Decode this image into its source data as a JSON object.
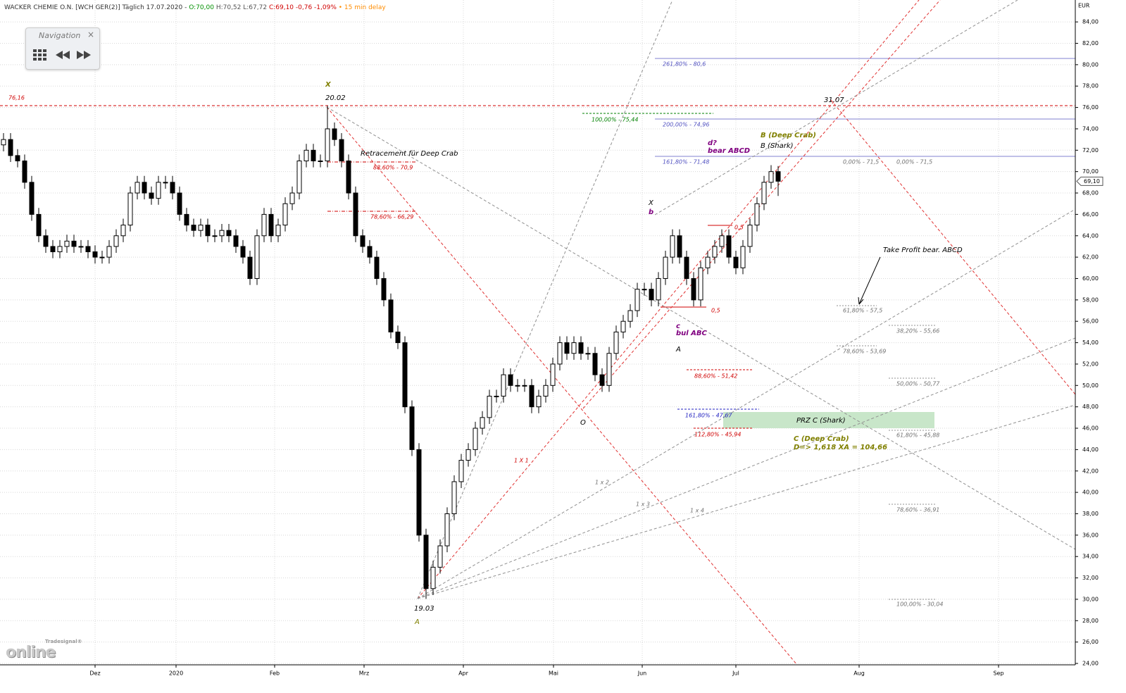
{
  "header": {
    "instrument": "WACKER CHEMIE O.N. [WCH GER(2)] Täglich 17.07.2020 -",
    "open": "O:70,00",
    "high": "H:70,52",
    "low": "L:67,72",
    "close": "C:69,10 -0,76 -1,09%",
    "delay": "• 15 min delay"
  },
  "navigation": {
    "title": "Navigation",
    "close": "×"
  },
  "logo": {
    "brand": "Tradesignal®",
    "name": "online"
  },
  "chart_data": {
    "type": "candlestick",
    "x": [
      0,
      1,
      2,
      3,
      4,
      5,
      6,
      7,
      8,
      9,
      10,
      11,
      12,
      13,
      14,
      15,
      16,
      17,
      18,
      19,
      20,
      21,
      22,
      23,
      24,
      25,
      26,
      27,
      28,
      29,
      30,
      31,
      32,
      33,
      34,
      35,
      36,
      37,
      38,
      39,
      40,
      41,
      42,
      43,
      44,
      45,
      46,
      47,
      48,
      49,
      50,
      51,
      52,
      53,
      54,
      55,
      56,
      57,
      58,
      59,
      60,
      61,
      62,
      63,
      64,
      65,
      66,
      67,
      68,
      69,
      70,
      71,
      72,
      73,
      74,
      75,
      76,
      77,
      78,
      79,
      80,
      81,
      82,
      83,
      84,
      85,
      86,
      87,
      88,
      89,
      90,
      91,
      92,
      93,
      94,
      95,
      96,
      97,
      98,
      99,
      100,
      101,
      102,
      103,
      104,
      105,
      106,
      107,
      108,
      109,
      110
    ],
    "open": [
      72.5,
      73,
      71.5,
      71,
      69,
      66,
      64,
      63,
      62.5,
      63,
      63.5,
      63,
      63,
      62.5,
      62,
      62,
      63,
      64,
      65,
      68,
      69,
      68,
      67.5,
      69,
      69,
      68,
      66,
      65,
      64.5,
      65,
      64,
      64,
      64.5,
      64,
      63,
      62,
      60,
      64,
      66,
      64,
      65,
      67,
      68,
      71,
      72,
      71,
      71,
      74,
      73,
      71,
      68,
      64,
      63,
      62,
      60,
      58,
      55,
      54,
      48,
      44,
      36,
      31,
      33,
      35,
      38,
      41,
      43,
      44,
      46,
      47,
      49,
      49,
      51,
      50,
      50,
      50,
      48,
      49,
      50,
      52,
      54,
      53,
      54,
      53,
      53,
      51,
      50,
      53,
      55,
      56,
      57,
      59,
      59,
      58,
      60,
      62,
      64,
      62,
      60,
      58,
      61,
      62,
      63,
      64,
      62,
      61,
      63,
      65,
      67,
      69,
      70
    ],
    "high": [
      73.6,
      73.6,
      72.1,
      71.6,
      69.6,
      66.6,
      64.6,
      63.6,
      63.6,
      64.1,
      64.1,
      63.6,
      63.6,
      63.1,
      62.6,
      63.6,
      64.6,
      65.6,
      68.6,
      69.6,
      69.6,
      68.6,
      69.6,
      69.6,
      69.6,
      68.6,
      66.6,
      65.6,
      65.6,
      65.6,
      64.6,
      65.1,
      65.1,
      64.6,
      63.6,
      62.6,
      64.6,
      66.6,
      66.6,
      65.6,
      67.6,
      68.6,
      71.6,
      72.6,
      72.6,
      71.6,
      76.16,
      74.6,
      73.6,
      71.6,
      68.6,
      64.6,
      63.6,
      62.6,
      60.6,
      58.6,
      55.6,
      54.6,
      48.6,
      44.6,
      36.6,
      33.6,
      35.6,
      38.6,
      41.6,
      43.6,
      44.6,
      46.6,
      47.6,
      49.6,
      49.6,
      51.6,
      51.6,
      50.6,
      50.6,
      50.6,
      49.6,
      50.6,
      52.6,
      54.6,
      54.6,
      54.6,
      54.6,
      53.6,
      53.6,
      51.6,
      53.6,
      55.6,
      56.6,
      57.6,
      59.6,
      59.6,
      59.6,
      60.6,
      62.6,
      64.6,
      64.6,
      62.6,
      60.6,
      61.6,
      62.6,
      63.6,
      64.6,
      64.6,
      62.6,
      63.6,
      65.6,
      67.6,
      69.6,
      70.6,
      70.52
    ],
    "low": [
      71.9,
      70.9,
      70.4,
      68.4,
      65.4,
      63.4,
      62.4,
      61.9,
      61.9,
      62.4,
      62.4,
      62.4,
      61.9,
      61.4,
      61.4,
      61.4,
      62.4,
      63.4,
      64.4,
      67.4,
      67.4,
      66.9,
      66.9,
      68.4,
      67.4,
      65.4,
      64.4,
      63.9,
      63.9,
      63.4,
      63.4,
      63.4,
      63.4,
      62.4,
      61.4,
      59.4,
      59.4,
      63.4,
      63.4,
      63.4,
      64.4,
      66.4,
      67.4,
      70.4,
      70.4,
      70.4,
      70.4,
      72.4,
      70.4,
      67.4,
      63.4,
      62.4,
      61.4,
      59.4,
      57.4,
      54.4,
      53.4,
      47.4,
      43.4,
      35.4,
      30.04,
      30.4,
      32.4,
      34.4,
      37.4,
      40.4,
      42.4,
      43.4,
      45.4,
      46.4,
      48.4,
      48.4,
      49.4,
      49.4,
      49.4,
      47.4,
      47.4,
      48.4,
      49.4,
      51.4,
      52.4,
      52.4,
      52.4,
      52.4,
      50.4,
      49.4,
      49.4,
      52.4,
      54.4,
      55.4,
      56.4,
      58.4,
      57.4,
      57.4,
      59.4,
      61.4,
      61.4,
      59.4,
      57.4,
      57.4,
      60.4,
      61.4,
      62.4,
      61.4,
      60.4,
      60.4,
      62.4,
      64.4,
      66.4,
      68.4,
      67.72
    ],
    "close": [
      73,
      71.5,
      71,
      69,
      66,
      64,
      63,
      62.5,
      63,
      63.5,
      63,
      63,
      62.5,
      62,
      62,
      63,
      64,
      65,
      68,
      69,
      68,
      67.5,
      69,
      69,
      68,
      66,
      65,
      64.5,
      65,
      64,
      64,
      64.5,
      64,
      63,
      62,
      60,
      64,
      66,
      64,
      65,
      67,
      68,
      71,
      72,
      71,
      71,
      74,
      73,
      71,
      68,
      64,
      63,
      62,
      60,
      58,
      55,
      54,
      48,
      44,
      36,
      31,
      33,
      35,
      38,
      41,
      43,
      44,
      46,
      47,
      49,
      49,
      51,
      50,
      50,
      50,
      48,
      49,
      50,
      52,
      54,
      53,
      54,
      53,
      53,
      51,
      50,
      53,
      55,
      56,
      57,
      59,
      59,
      58,
      60,
      62,
      64,
      62,
      60,
      58,
      61,
      62,
      63,
      64,
      62,
      61,
      63,
      65,
      67,
      69,
      70,
      69.1
    ],
    "up_color": "#ffffff",
    "down_color": "#000000",
    "wick_color": "#000000",
    "xlim": [
      -0.5,
      152.2
    ],
    "xticks": [
      {
        "value": 13,
        "label": "Dez"
      },
      {
        "value": 24.5,
        "label": "2020"
      },
      {
        "value": 38.5,
        "label": "Feb"
      },
      {
        "value": 51.2,
        "label": "Mrz"
      },
      {
        "value": 65.3,
        "label": "Apr"
      },
      {
        "value": 78.1,
        "label": "Mai"
      },
      {
        "value": 90.7,
        "label": "Jun"
      },
      {
        "value": 104,
        "label": "Jul"
      },
      {
        "value": 121.5,
        "label": "Aug"
      },
      {
        "value": 141.3,
        "label": "Sep"
      }
    ],
    "ylim": [
      23.87,
      86.05
    ],
    "yticks": [
      {
        "value": 24,
        "label": "24,00"
      },
      {
        "value": 26,
        "label": "26,00"
      },
      {
        "value": 28,
        "label": "28,00"
      },
      {
        "value": 30,
        "label": "30,00"
      },
      {
        "value": 32,
        "label": "32,00"
      },
      {
        "value": 34,
        "label": "34,00"
      },
      {
        "value": 36,
        "label": "36,00"
      },
      {
        "value": 38,
        "label": "38,00"
      },
      {
        "value": 40,
        "label": "40,00"
      },
      {
        "value": 42,
        "label": "42,00"
      },
      {
        "value": 44,
        "label": "44,00"
      },
      {
        "value": 46,
        "label": "46,00"
      },
      {
        "value": 48,
        "label": "48,00"
      },
      {
        "value": 50,
        "label": "50,00"
      },
      {
        "value": 52,
        "label": "52,00"
      },
      {
        "value": 54,
        "label": "54,00"
      },
      {
        "value": 56,
        "label": "56,00"
      },
      {
        "value": 58,
        "label": "58,00"
      },
      {
        "value": 60,
        "label": "60,00"
      },
      {
        "value": 62,
        "label": "62,00"
      },
      {
        "value": 64,
        "label": "64,00"
      },
      {
        "value": 66,
        "label": "66,00"
      },
      {
        "value": 68,
        "label": "68,00"
      },
      {
        "value": 70,
        "label": "70,00"
      },
      {
        "value": 72,
        "label": "72,00"
      },
      {
        "value": 74,
        "label": "74,00"
      },
      {
        "value": 76,
        "label": "76,00"
      },
      {
        "value": 78,
        "label": "78,00"
      },
      {
        "value": 80,
        "label": "80,00"
      },
      {
        "value": 82,
        "label": "82,00"
      },
      {
        "value": 84,
        "label": "84,00"
      }
    ],
    "y_unit": "EUR",
    "last_price": {
      "value": 69.1,
      "label": "69,10"
    },
    "grid": true,
    "annotations": [
      {
        "text": "76,16",
        "color": "#d00000"
      },
      {
        "text": "X",
        "color": "#808000"
      },
      {
        "text": "20.02",
        "color": "#000000"
      },
      {
        "text": "Retracement für Deep Crab",
        "color": "#000000"
      },
      {
        "text": "88,60% - 70,9",
        "color": "#d00000"
      },
      {
        "text": "78,60% - 66,29",
        "color": "#d00000"
      },
      {
        "text": "100,00% - 75,44",
        "color": "#008000"
      },
      {
        "text": "261,80% - 80,6",
        "color": "#5050c0"
      },
      {
        "text": "200,00% - 74,96",
        "color": "#5050c0"
      },
      {
        "text": "161,80% - 71,48",
        "color": "#5050c0"
      },
      {
        "text": "d?",
        "color": "#800080"
      },
      {
        "text": "bear ABCD",
        "color": "#800080"
      },
      {
        "text": "B (Deep Crab)",
        "color": "#808000"
      },
      {
        "text": "B (Shark)",
        "color": "#000000"
      },
      {
        "text": "31.07",
        "color": "#000000"
      },
      {
        "text": "0,00% - 71,5",
        "color": "#707070"
      },
      {
        "text": "0,00% - 71,5",
        "color": "#707070"
      },
      {
        "text": "X",
        "color": "#000000"
      },
      {
        "text": "b",
        "color": "#800080"
      },
      {
        "text": "0,5",
        "color": "#d00000"
      },
      {
        "text": "0,5",
        "color": "#d00000"
      },
      {
        "text": "c",
        "color": "#800080"
      },
      {
        "text": "bul ABC",
        "color": "#800080"
      },
      {
        "text": "A",
        "color": "#000000"
      },
      {
        "text": "Take Profit bear. ABCD",
        "color": "#000000"
      },
      {
        "text": "61,80% - 57,5",
        "color": "#707070"
      },
      {
        "text": "38,20% - 55,66",
        "color": "#707070"
      },
      {
        "text": "78,60% - 53,69",
        "color": "#707070"
      },
      {
        "text": "88,60% - 51,42",
        "color": "#d00000"
      },
      {
        "text": "50,00% - 50,77",
        "color": "#707070"
      },
      {
        "text": "161,80% - 47,67",
        "color": "#2020c0"
      },
      {
        "text": "PRZ C (Shark)",
        "color": "#000000"
      },
      {
        "text": "112,80% - 45,94",
        "color": "#d00000"
      },
      {
        "text": "61,80% - 45,88",
        "color": "#707070"
      },
      {
        "text": "C (Deep Crab)",
        "color": "#808000"
      },
      {
        "text": "D=> 1,618 XA = 104,66",
        "color": "#808000"
      },
      {
        "text": "1 X 1",
        "color": "#d00000"
      },
      {
        "text": "1 x 2",
        "color": "#707070"
      },
      {
        "text": "1 x 3",
        "color": "#707070"
      },
      {
        "text": "1 x 4",
        "color": "#707070"
      },
      {
        "text": "78,60% - 36,91",
        "color": "#707070"
      },
      {
        "text": "O",
        "color": "#000000"
      },
      {
        "text": "19.03",
        "color": "#000000"
      },
      {
        "text": "A",
        "color": "#808000"
      },
      {
        "text": "100,00% - 30,04",
        "color": "#707070"
      }
    ]
  }
}
